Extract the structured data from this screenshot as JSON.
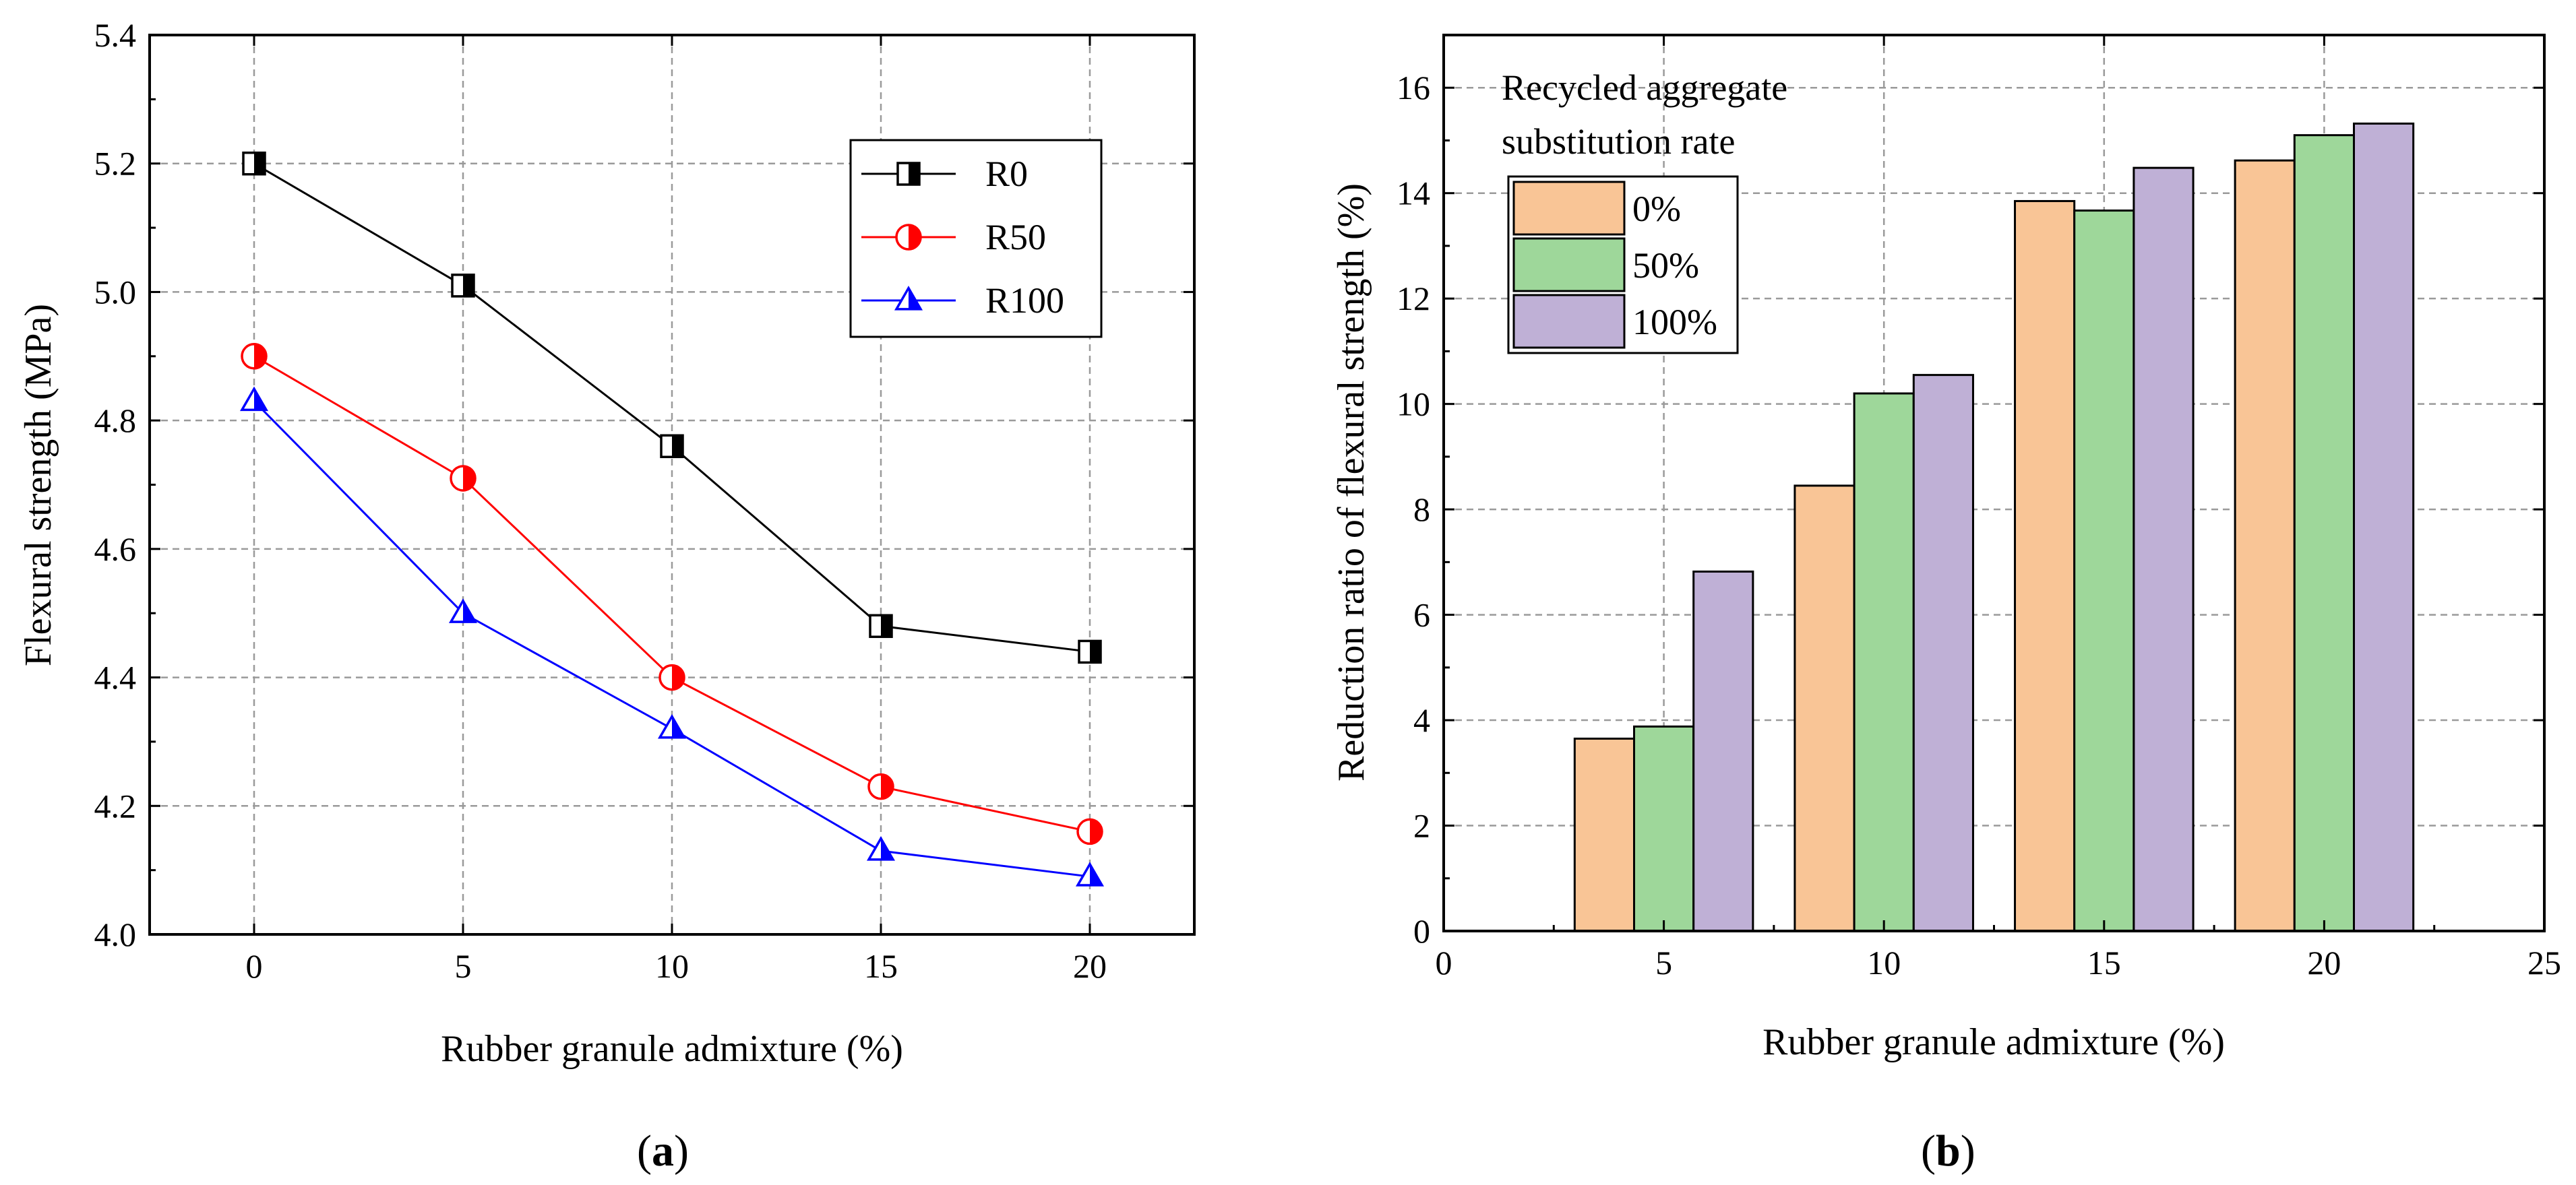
{
  "chart_data": [
    {
      "type": "line",
      "panel_label_open": "(",
      "panel_label_letter": "a",
      "panel_label_close": ")",
      "xlabel": "Rubber granule admixture (%)",
      "ylabel": "Flexural strength (MPa)",
      "x": [
        0,
        5,
        10,
        15,
        20
      ],
      "xlim": [
        -2.5,
        22.5
      ],
      "ylim": [
        4.0,
        5.4
      ],
      "xticks": [
        0,
        5,
        10,
        15,
        20
      ],
      "xtick_labels": [
        "0",
        "5",
        "10",
        "15",
        "20"
      ],
      "yticks": [
        4.0,
        4.2,
        4.4,
        4.6,
        4.8,
        5.0,
        5.2,
        5.4
      ],
      "ytick_labels": [
        "4.0",
        "4.2",
        "4.4",
        "4.6",
        "4.8",
        "5.0",
        "5.2",
        "5.4"
      ],
      "grid": true,
      "legend_position": "top-right",
      "series": [
        {
          "name": "R0",
          "marker": "half-filled-square",
          "color": "#000000",
          "values": [
            5.2,
            5.01,
            4.76,
            4.48,
            4.44
          ]
        },
        {
          "name": "R50",
          "marker": "half-filled-circle",
          "color": "#ff0000",
          "values": [
            4.9,
            4.71,
            4.4,
            4.23,
            4.16
          ]
        },
        {
          "name": "R100",
          "marker": "half-filled-triangle",
          "color": "#0000ff",
          "values": [
            4.83,
            4.5,
            4.32,
            4.13,
            4.09
          ]
        }
      ]
    },
    {
      "type": "bar",
      "panel_label_open": "(",
      "panel_label_letter": "b",
      "panel_label_close": ")",
      "xlabel": "Rubber granule admixture (%)",
      "ylabel": "Reduction ratio of flexural strength (%)",
      "categories": [
        5,
        10,
        15,
        20
      ],
      "xlim": [
        0,
        25
      ],
      "ylim": [
        0,
        17
      ],
      "bar_width": 1.35,
      "xticks": [
        0,
        5,
        10,
        15,
        20,
        25
      ],
      "xtick_labels": [
        "0",
        "5",
        "10",
        "15",
        "20",
        "25"
      ],
      "yticks": [
        0,
        2,
        4,
        6,
        8,
        10,
        12,
        14,
        16
      ],
      "ytick_labels": [
        "0",
        "2",
        "4",
        "6",
        "8",
        "10",
        "12",
        "14",
        "16"
      ],
      "grid": true,
      "legend_title_line1": "Recycled aggregate",
      "legend_title_line2": "substitution rate",
      "legend_position": "top-left",
      "series": [
        {
          "name": "0%",
          "color": "#f9c596",
          "values": [
            3.65,
            8.45,
            13.85,
            14.62
          ]
        },
        {
          "name": "50%",
          "color": "#9ed79a",
          "values": [
            3.88,
            10.2,
            13.67,
            15.1
          ]
        },
        {
          "name": "100%",
          "color": "#bfb0d6",
          "values": [
            6.82,
            10.55,
            14.48,
            15.32
          ]
        }
      ]
    }
  ]
}
